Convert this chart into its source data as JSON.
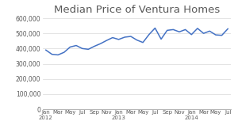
{
  "title": "Median Price of Ventura Homes",
  "x_labels": [
    "Jan\n2012",
    "Mar",
    "May",
    "Jul",
    "Sep",
    "Nov",
    "Jan\n2013",
    "Mar",
    "May",
    "Jul",
    "Sep",
    "Nov",
    "Jan\n2014",
    "Mar",
    "May",
    "Jul"
  ],
  "y_values": [
    390000,
    362000,
    358000,
    375000,
    410000,
    420000,
    400000,
    395000,
    415000,
    432000,
    453000,
    472000,
    460000,
    475000,
    480000,
    456000,
    440000,
    492000,
    535000,
    462000,
    520000,
    525000,
    510000,
    525000,
    492000,
    533000,
    500000,
    515000,
    490000,
    487000,
    530000
  ],
  "line_color": "#4472C4",
  "background_color": "#ffffff",
  "ylim": [
    0,
    600000
  ],
  "yticks": [
    0,
    100000,
    200000,
    300000,
    400000,
    500000,
    600000
  ],
  "grid_color": "#d9d9d9",
  "title_fontsize": 9.5,
  "title_color": "#595959"
}
